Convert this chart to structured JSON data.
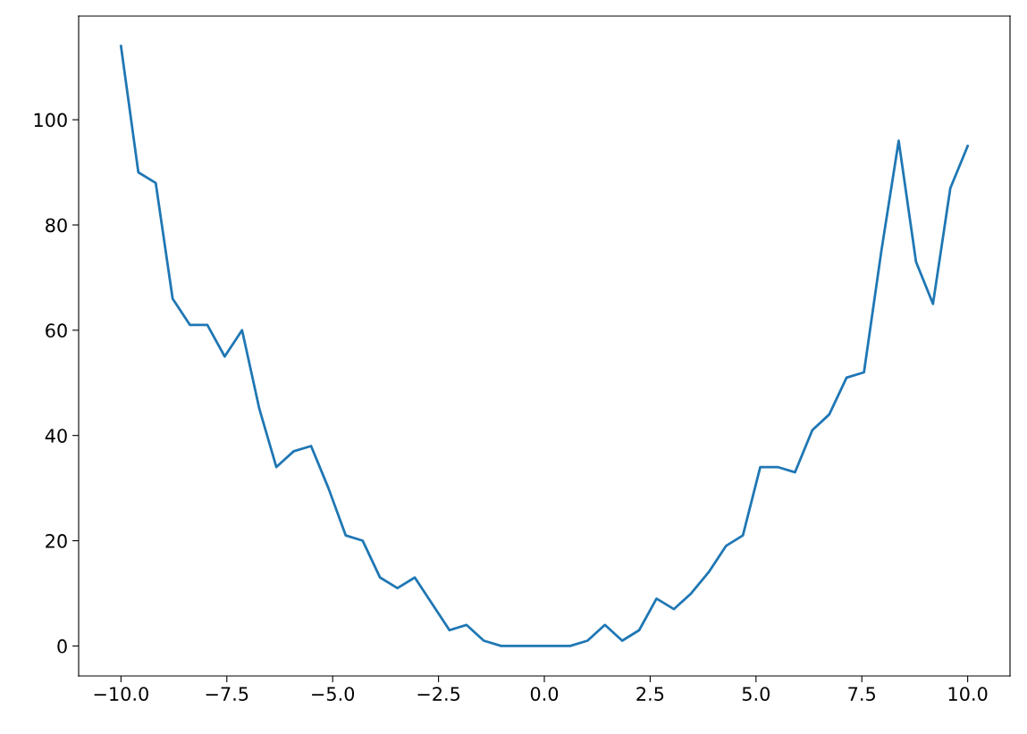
{
  "chart_data": {
    "type": "line",
    "x": [
      -10.0,
      -9.59,
      -9.18,
      -8.78,
      -8.37,
      -7.96,
      -7.55,
      -7.14,
      -6.73,
      -6.33,
      -5.92,
      -5.51,
      -5.1,
      -4.69,
      -4.29,
      -3.88,
      -3.47,
      -3.06,
      -2.65,
      -2.24,
      -1.84,
      -1.43,
      -1.02,
      -0.61,
      -0.2,
      0.2,
      0.61,
      1.02,
      1.43,
      1.84,
      2.24,
      2.65,
      3.06,
      3.47,
      3.88,
      4.29,
      4.69,
      5.1,
      5.51,
      5.92,
      6.33,
      6.73,
      7.14,
      7.55,
      7.96,
      8.37,
      8.78,
      9.18,
      9.59,
      10.0
    ],
    "series": [
      {
        "color": "#1f77b4",
        "values": [
          114,
          90,
          88,
          66,
          61,
          61,
          55,
          60,
          45,
          34,
          37,
          38,
          30,
          21,
          20,
          13,
          11,
          13,
          8,
          3,
          4,
          1,
          0,
          0,
          0,
          0,
          0,
          1,
          4,
          1,
          3,
          9,
          7,
          10,
          14,
          19,
          21,
          34,
          34,
          33,
          41,
          44,
          51,
          52,
          75,
          96,
          73,
          65,
          87,
          95
        ]
      }
    ],
    "xlim": [
      -11,
      11
    ],
    "ylim": [
      -5.7,
      119.7
    ],
    "xticks": [
      {
        "value": -10,
        "label": "−10.0"
      },
      {
        "value": -7.5,
        "label": "−7.5"
      },
      {
        "value": -5,
        "label": "−5.0"
      },
      {
        "value": -2.5,
        "label": "−2.5"
      },
      {
        "value": 0,
        "label": "0.0"
      },
      {
        "value": 2.5,
        "label": "2.5"
      },
      {
        "value": 5,
        "label": "5.0"
      },
      {
        "value": 7.5,
        "label": "7.5"
      },
      {
        "value": 10,
        "label": "10.0"
      }
    ],
    "yticks": [
      0,
      20,
      40,
      60,
      80,
      100
    ],
    "marker": "none",
    "line_style": "solid"
  }
}
